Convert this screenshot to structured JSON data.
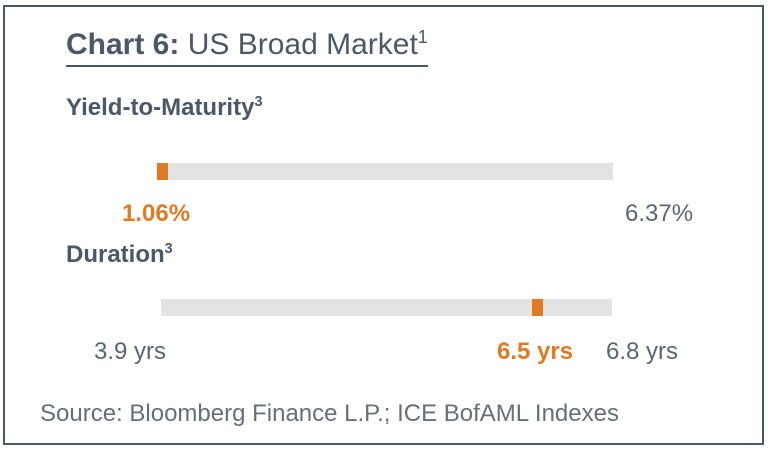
{
  "title": {
    "prefix": "Chart 6:",
    "text": " US Broad Market",
    "note": "1"
  },
  "colors": {
    "accent": "#e07b24",
    "track": "#e3e3e3",
    "text": "#4a5868"
  },
  "chart_data": [
    {
      "type": "bar",
      "label": "Yield-to-Maturity",
      "label_note": "3",
      "range_min": 1.06,
      "range_max": 6.37,
      "current": 1.06,
      "min_label": "1.06%",
      "max_label": "6.37%",
      "current_label": "1.06%"
    },
    {
      "type": "bar",
      "label": "Duration",
      "label_note": "3",
      "range_min": 3.9,
      "range_max": 6.8,
      "current": 6.5,
      "min_label": "3.9 yrs",
      "max_label": "6.8 yrs",
      "current_label": "6.5 yrs"
    }
  ],
  "source": "Source: Bloomberg Finance L.P.; ICE BofAML Indexes"
}
